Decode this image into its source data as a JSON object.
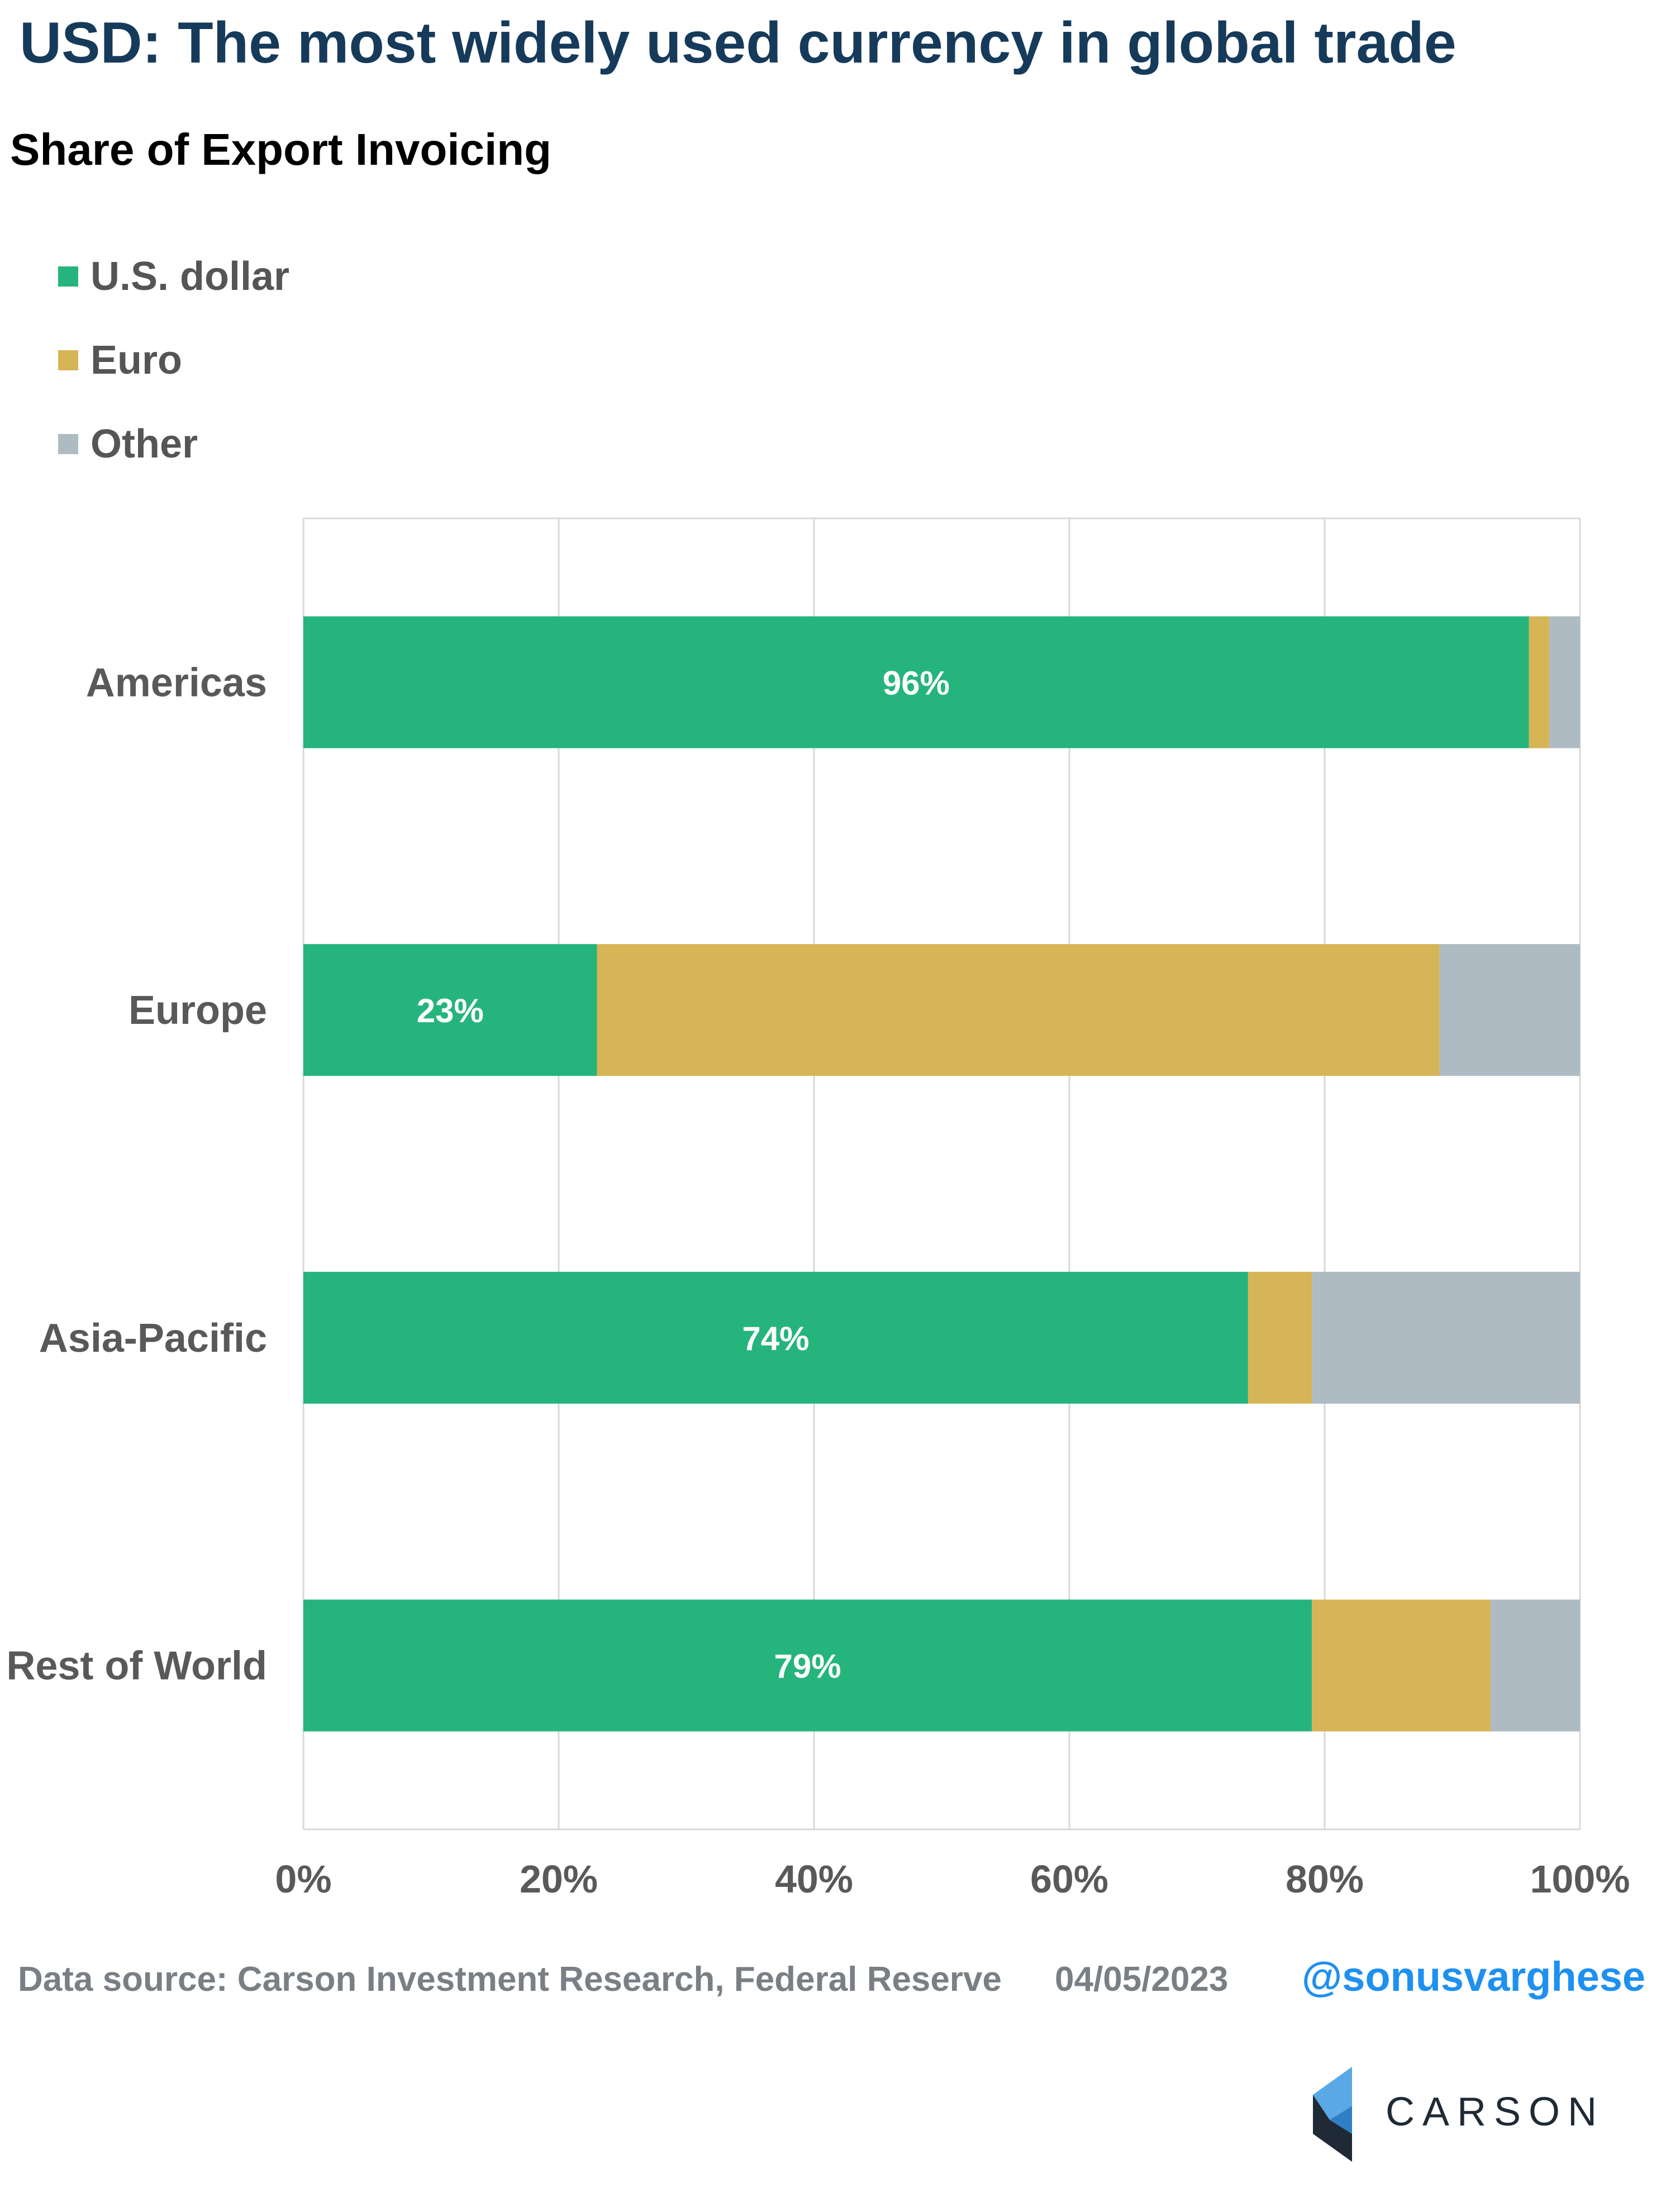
{
  "title": "USD: The most widely used currency in global trade",
  "subtitle": "Share of Export Invoicing",
  "legend": [
    {
      "label": "U.S. dollar",
      "color": "#26b47d"
    },
    {
      "label": "Euro",
      "color": "#d6b556"
    },
    {
      "label": "Other",
      "color": "#aebbc3"
    }
  ],
  "footer": {
    "source": "Data source: Carson Investment Research, Federal Reserve",
    "date": "04/05/2023",
    "handle": "@sonusvarghese",
    "logo_text": "CARSON"
  },
  "chart_data": {
    "type": "bar",
    "orientation": "horizontal",
    "stacked": true,
    "categories": [
      "Americas",
      "Europe",
      "Asia-Pacific",
      "Rest of World"
    ],
    "series": [
      {
        "name": "U.S. dollar",
        "color": "#26b47d",
        "values": [
          96,
          23,
          74,
          79
        ]
      },
      {
        "name": "Euro",
        "color": "#d6b556",
        "values": [
          1.6,
          66,
          5,
          14
        ]
      },
      {
        "name": "Other",
        "color": "#aebbc3",
        "values": [
          2.4,
          11,
          21,
          7
        ]
      }
    ],
    "data_labels": [
      "96%",
      "23%",
      "74%",
      "79%"
    ],
    "xlim": [
      0,
      100
    ],
    "xticks": [
      "0%",
      "20%",
      "40%",
      "60%",
      "80%",
      "100%"
    ],
    "grid": true,
    "legend_position": "top-left"
  }
}
